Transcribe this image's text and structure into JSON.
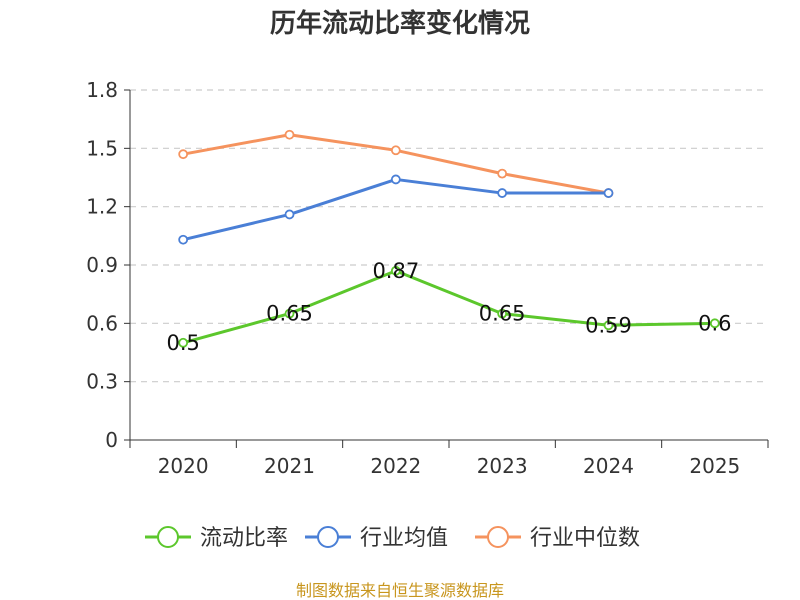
{
  "chart_data": {
    "type": "line",
    "title": "历年流动比率变化情况",
    "categories": [
      "2020",
      "2021",
      "2022",
      "2023",
      "2024",
      "2025"
    ],
    "ylim": [
      0,
      1.8
    ],
    "yticks": [
      "0",
      "0.3",
      "0.6",
      "0.9",
      "1.2",
      "1.5",
      "1.8"
    ],
    "grid": true,
    "legend_position": "bottom",
    "series": [
      {
        "name": "流动比率",
        "color": "#5cc72c",
        "values": [
          0.5,
          0.65,
          0.87,
          0.65,
          0.59,
          0.6
        ],
        "labels": [
          "0.5",
          "0.65",
          "0.87",
          "0.65",
          "0.59",
          "0.6"
        ]
      },
      {
        "name": "行业均值",
        "color": "#4a7fd6",
        "values": [
          1.03,
          1.16,
          1.34,
          1.27,
          1.27,
          null
        ]
      },
      {
        "name": "行业中位数",
        "color": "#f5935e",
        "values": [
          1.47,
          1.57,
          1.49,
          1.37,
          1.27,
          null
        ]
      }
    ],
    "source": "制图数据来自恒生聚源数据库"
  }
}
